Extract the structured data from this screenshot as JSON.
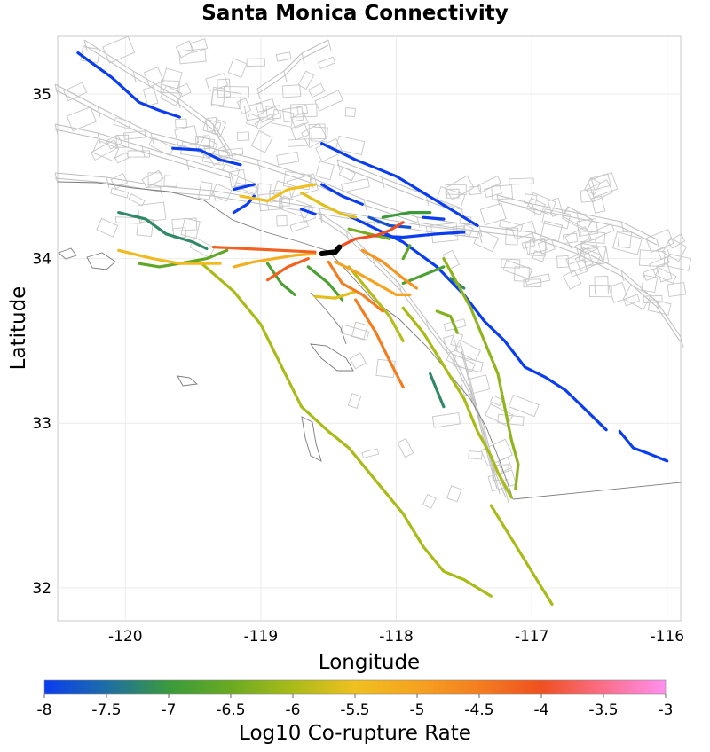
{
  "chart_data": {
    "type": "map",
    "title": "Santa Monica Connectivity",
    "xlabel": "Longitude",
    "ylabel": "Latitude",
    "xlim": [
      -120.5,
      -115.9
    ],
    "ylim": [
      31.8,
      35.35
    ],
    "xticks": [
      -120,
      -119,
      -118,
      -117,
      -116
    ],
    "yticks": [
      32,
      33,
      34,
      35
    ],
    "grid": true,
    "colorbar": {
      "label": "Log10 Co-rupture Rate",
      "min": -8,
      "max": -3,
      "ticks": [
        "-8",
        "-7.5",
        "-7",
        "-6.5",
        "-6",
        "-5.5",
        "-5",
        "-4.5",
        "-4",
        "-3.5",
        "-3"
      ],
      "stops": [
        {
          "v": -8,
          "color": "#0a3cf0"
        },
        {
          "v": -7.5,
          "color": "#1e6ea6"
        },
        {
          "v": -7,
          "color": "#3a9a3c"
        },
        {
          "v": -6.5,
          "color": "#6aaa22"
        },
        {
          "v": -6,
          "color": "#aabb18"
        },
        {
          "v": -5.5,
          "color": "#efc020"
        },
        {
          "v": -5,
          "color": "#f6a320"
        },
        {
          "v": -4.5,
          "color": "#f47d20"
        },
        {
          "v": -4,
          "color": "#ef5020"
        },
        {
          "v": -3.5,
          "color": "#fb6e8a"
        },
        {
          "v": -3,
          "color": "#ff90f0"
        }
      ]
    },
    "source_section": {
      "name": "Santa Monica",
      "color": "#000000",
      "points": [
        [
          -118.55,
          34.03
        ],
        [
          -118.45,
          34.04
        ],
        [
          -118.42,
          34.07
        ]
      ]
    },
    "faults": [
      {
        "value": -8.0,
        "points": [
          [
            -120.35,
            35.25
          ],
          [
            -120.1,
            35.1
          ],
          [
            -119.9,
            34.95
          ],
          [
            -119.75,
            34.9
          ],
          [
            -119.6,
            34.86
          ]
        ]
      },
      {
        "value": -8.0,
        "points": [
          [
            -119.65,
            34.67
          ],
          [
            -119.45,
            34.66
          ],
          [
            -119.3,
            34.6
          ],
          [
            -119.15,
            34.57
          ]
        ]
      },
      {
        "value": -8.0,
        "points": [
          [
            -118.55,
            34.7
          ],
          [
            -118.3,
            34.6
          ],
          [
            -118.0,
            34.5
          ],
          [
            -117.7,
            34.35
          ],
          [
            -117.5,
            34.25
          ],
          [
            -117.4,
            34.2
          ]
        ]
      },
      {
        "value": -8.0,
        "points": [
          [
            -118.35,
            34.26
          ],
          [
            -118.15,
            34.18
          ],
          [
            -117.95,
            34.1
          ],
          [
            -117.7,
            33.95
          ],
          [
            -117.5,
            33.78
          ],
          [
            -117.35,
            33.62
          ],
          [
            -117.2,
            33.5
          ],
          [
            -117.05,
            33.34
          ],
          [
            -116.9,
            33.28
          ],
          [
            -116.75,
            33.2
          ],
          [
            -116.6,
            33.08
          ],
          [
            -116.45,
            32.96
          ]
        ]
      },
      {
        "value": -8.0,
        "points": [
          [
            -116.35,
            32.95
          ],
          [
            -116.25,
            32.85
          ],
          [
            -116.15,
            32.82
          ],
          [
            -116.0,
            32.77
          ]
        ]
      },
      {
        "value": -8.0,
        "points": [
          [
            -119.2,
            34.42
          ],
          [
            -119.05,
            34.45
          ]
        ]
      },
      {
        "value": -8.0,
        "points": [
          [
            -119.2,
            34.28
          ],
          [
            -119.1,
            34.33
          ],
          [
            -119.05,
            34.38
          ]
        ]
      },
      {
        "value": -8.0,
        "points": [
          [
            -118.7,
            34.3
          ],
          [
            -118.6,
            34.27
          ]
        ]
      },
      {
        "value": -8.0,
        "points": [
          [
            -118.2,
            34.14
          ],
          [
            -117.95,
            34.13
          ],
          [
            -117.7,
            34.15
          ],
          [
            -117.5,
            34.16
          ]
        ]
      },
      {
        "value": -8.0,
        "points": [
          [
            -118.55,
            34.45
          ],
          [
            -118.4,
            34.38
          ],
          [
            -118.25,
            34.33
          ]
        ]
      },
      {
        "value": -8.0,
        "points": [
          [
            -117.8,
            34.25
          ],
          [
            -117.65,
            34.24
          ]
        ]
      },
      {
        "value": -7.8,
        "points": [
          [
            -118.2,
            34.25
          ],
          [
            -118.05,
            34.2
          ],
          [
            -117.9,
            34.19
          ]
        ]
      },
      {
        "value": -7.2,
        "points": [
          [
            -120.05,
            34.28
          ],
          [
            -119.85,
            34.24
          ],
          [
            -119.7,
            34.15
          ],
          [
            -119.5,
            34.1
          ],
          [
            -119.4,
            34.06
          ]
        ]
      },
      {
        "value": -7.2,
        "points": [
          [
            -117.6,
            33.88
          ],
          [
            -117.5,
            33.82
          ]
        ]
      },
      {
        "value": -7.2,
        "points": [
          [
            -117.75,
            33.3
          ],
          [
            -117.7,
            33.2
          ],
          [
            -117.65,
            33.1
          ]
        ]
      },
      {
        "value": -7.0,
        "points": [
          [
            -118.1,
            34.25
          ],
          [
            -117.9,
            34.28
          ],
          [
            -117.75,
            34.28
          ]
        ]
      },
      {
        "value": -6.8,
        "points": [
          [
            -118.65,
            33.95
          ],
          [
            -118.5,
            33.85
          ],
          [
            -118.4,
            33.75
          ]
        ]
      },
      {
        "value": -6.8,
        "points": [
          [
            -118.95,
            33.97
          ],
          [
            -118.85,
            33.85
          ],
          [
            -118.75,
            33.78
          ]
        ]
      },
      {
        "value": -6.8,
        "points": [
          [
            -117.95,
            33.85
          ],
          [
            -117.8,
            33.9
          ],
          [
            -117.65,
            33.95
          ]
        ]
      },
      {
        "value": -6.6,
        "points": [
          [
            -119.9,
            33.97
          ],
          [
            -119.75,
            33.95
          ],
          [
            -119.6,
            33.97
          ],
          [
            -119.4,
            34.0
          ],
          [
            -119.25,
            34.05
          ]
        ]
      },
      {
        "value": -6.6,
        "points": [
          [
            -117.95,
            34.0
          ],
          [
            -117.9,
            34.08
          ]
        ]
      },
      {
        "value": -6.4,
        "points": [
          [
            -118.35,
            34.18
          ],
          [
            -118.2,
            34.15
          ],
          [
            -118.05,
            34.12
          ]
        ]
      },
      {
        "value": -6.3,
        "points": [
          [
            -117.7,
            33.68
          ],
          [
            -117.6,
            33.65
          ],
          [
            -117.55,
            33.55
          ]
        ]
      },
      {
        "value": -6.2,
        "points": [
          [
            -117.65,
            34.0
          ],
          [
            -117.55,
            33.85
          ],
          [
            -117.45,
            33.7
          ],
          [
            -117.35,
            33.5
          ],
          [
            -117.25,
            33.3
          ],
          [
            -117.2,
            33.1
          ],
          [
            -117.15,
            32.9
          ],
          [
            -117.1,
            32.75
          ],
          [
            -117.12,
            32.6
          ]
        ]
      },
      {
        "value": -6.0,
        "points": [
          [
            -119.45,
            33.98
          ],
          [
            -119.2,
            33.8
          ],
          [
            -119.0,
            33.6
          ],
          [
            -118.85,
            33.35
          ],
          [
            -118.7,
            33.1
          ],
          [
            -118.5,
            32.95
          ],
          [
            -118.35,
            32.85
          ],
          [
            -118.15,
            32.65
          ],
          [
            -117.95,
            32.45
          ],
          [
            -117.8,
            32.25
          ],
          [
            -117.65,
            32.1
          ],
          [
            -117.5,
            32.05
          ],
          [
            -117.3,
            31.95
          ]
        ]
      },
      {
        "value": -6.0,
        "points": [
          [
            -117.95,
            33.7
          ],
          [
            -117.8,
            33.55
          ],
          [
            -117.65,
            33.35
          ],
          [
            -117.5,
            33.15
          ],
          [
            -117.4,
            32.95
          ],
          [
            -117.3,
            32.8
          ],
          [
            -117.25,
            32.7
          ],
          [
            -117.15,
            32.55
          ]
        ]
      },
      {
        "value": -6.0,
        "points": [
          [
            -117.3,
            32.5
          ],
          [
            -117.15,
            32.3
          ],
          [
            -117.0,
            32.1
          ],
          [
            -116.85,
            31.9
          ]
        ]
      },
      {
        "value": -5.9,
        "points": [
          [
            -118.35,
            33.95
          ],
          [
            -118.2,
            33.8
          ],
          [
            -118.05,
            33.65
          ],
          [
            -117.95,
            33.5
          ]
        ]
      },
      {
        "value": -5.6,
        "points": [
          [
            -118.6,
            33.77
          ],
          [
            -118.45,
            33.76
          ],
          [
            -118.3,
            33.8
          ]
        ]
      },
      {
        "value": -5.6,
        "points": [
          [
            -118.7,
            34.4
          ],
          [
            -118.55,
            34.33
          ],
          [
            -118.4,
            34.27
          ],
          [
            -118.3,
            34.25
          ]
        ]
      },
      {
        "value": -5.5,
        "points": [
          [
            -119.15,
            34.38
          ],
          [
            -118.95,
            34.35
          ],
          [
            -118.8,
            34.42
          ],
          [
            -118.6,
            34.45
          ]
        ]
      },
      {
        "value": -5.4,
        "points": [
          [
            -120.05,
            34.05
          ],
          [
            -119.8,
            34.0
          ],
          [
            -119.6,
            33.97
          ],
          [
            -119.3,
            33.97
          ]
        ]
      },
      {
        "value": -5.2,
        "points": [
          [
            -119.2,
            33.95
          ],
          [
            -119.05,
            33.98
          ],
          [
            -118.9,
            34.0
          ],
          [
            -118.75,
            34.02
          ],
          [
            -118.6,
            34.03
          ]
        ]
      },
      {
        "value": -5.0,
        "points": [
          [
            -118.45,
            33.98
          ],
          [
            -118.3,
            33.92
          ],
          [
            -118.15,
            33.85
          ],
          [
            -118.0,
            33.78
          ],
          [
            -117.9,
            33.78
          ]
        ]
      },
      {
        "value": -4.8,
        "points": [
          [
            -118.25,
            34.05
          ],
          [
            -118.1,
            33.98
          ],
          [
            -117.95,
            33.88
          ],
          [
            -117.85,
            33.82
          ]
        ]
      },
      {
        "value": -4.5,
        "points": [
          [
            -118.5,
            33.98
          ],
          [
            -118.4,
            33.85
          ],
          [
            -118.25,
            33.78
          ],
          [
            -118.1,
            33.68
          ]
        ]
      },
      {
        "value": -4.5,
        "points": [
          [
            -118.3,
            33.75
          ],
          [
            -118.15,
            33.55
          ],
          [
            -118.05,
            33.38
          ],
          [
            -117.95,
            33.22
          ]
        ]
      },
      {
        "value": -4.2,
        "points": [
          [
            -119.35,
            34.07
          ],
          [
            -119.1,
            34.06
          ],
          [
            -118.85,
            34.05
          ],
          [
            -118.6,
            34.04
          ]
        ]
      },
      {
        "value": -4.2,
        "points": [
          [
            -118.95,
            33.87
          ],
          [
            -118.8,
            33.95
          ],
          [
            -118.65,
            34.0
          ]
        ]
      },
      {
        "value": -4.0,
        "points": [
          [
            -118.4,
            34.08
          ],
          [
            -118.3,
            34.12
          ],
          [
            -118.15,
            34.14
          ],
          [
            -118.05,
            34.17
          ],
          [
            -117.95,
            34.22
          ]
        ]
      }
    ]
  }
}
